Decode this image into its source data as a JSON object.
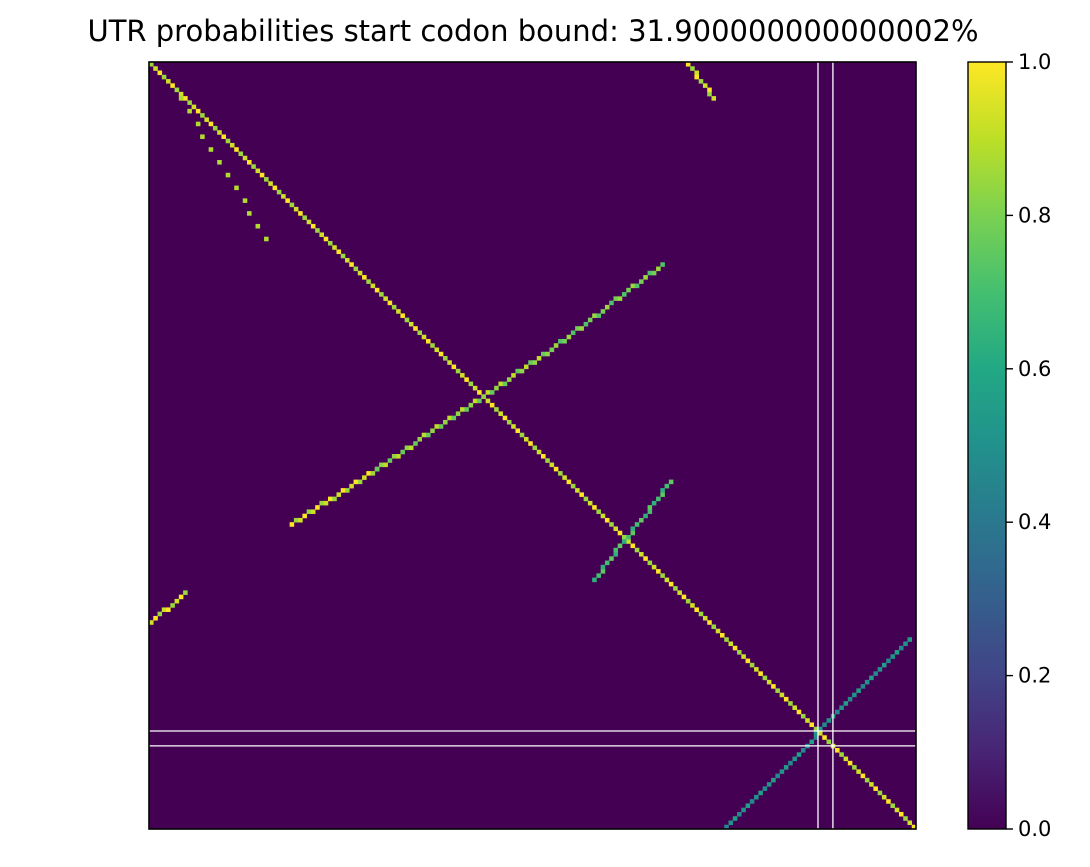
{
  "chart_data": {
    "type": "heatmap",
    "title": "UTR probabilities start codon bound: 31.900000000000002%",
    "xlabel": "",
    "ylabel": "",
    "colorscale": "viridis",
    "zlim": [
      0,
      1
    ],
    "colorbar_ticks": [
      "0.0",
      "0.2",
      "0.4",
      "0.6",
      "0.8",
      "1.0"
    ],
    "grid_size": 180,
    "highlight_lines_color": "#ffffff",
    "highlight_lines": {
      "vertical_cols": [
        157,
        160.5
      ],
      "horizontal_rows": [
        157,
        160.5
      ]
    },
    "features": [
      {
        "kind": "diagonal",
        "from": [
          0,
          0
        ],
        "to": [
          179,
          179
        ],
        "value": 1.0
      },
      {
        "kind": "antidiagonal",
        "from": [
          7,
          8
        ],
        "to": [
          27,
          41
        ],
        "value": 0.95,
        "sparse": true
      },
      {
        "kind": "antidiagonal",
        "from": [
          33,
          108
        ],
        "to": [
          53,
          95
        ],
        "value": 1.0
      },
      {
        "kind": "antidiagonal",
        "from": [
          53,
          95
        ],
        "to": [
          94,
          67
        ],
        "value": 0.9
      },
      {
        "kind": "antidiagonal",
        "from": [
          94,
          67
        ],
        "to": [
          120,
          47
        ],
        "value": 0.85
      },
      {
        "kind": "antidiagonal",
        "from": [
          126,
          0
        ],
        "to": [
          132,
          8
        ],
        "value": 1.0
      },
      {
        "kind": "antidiagonal",
        "from": [
          104,
          121
        ],
        "to": [
          122,
          98
        ],
        "value": 0.75
      },
      {
        "kind": "antidiagonal",
        "from": [
          0,
          131
        ],
        "to": [
          8,
          124
        ],
        "value": 1.0
      },
      {
        "kind": "antidiagonal",
        "from": [
          134,
          180
        ],
        "to": [
          178,
          135
        ],
        "value": 0.55
      }
    ]
  }
}
